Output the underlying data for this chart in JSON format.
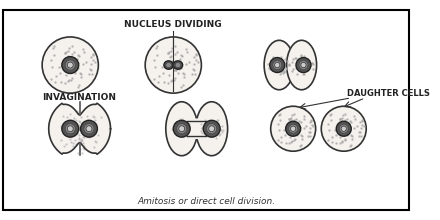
{
  "title": "Amitosis or direct cell division.",
  "label_nucleus_dividing": "NUCLEUS DIVIDING",
  "label_invagination": "INVAGINATION",
  "label_daughter_cells": "DAUGHTER CELLS",
  "bg_color": "#ffffff",
  "border_color": "#000000",
  "cell_fill": "#f0ede8",
  "nucleus_fill": "#2a2a2a",
  "nucleolus_fill": "#ffffff",
  "cytoplasm_spot_color": "#cccccc",
  "line_color": "#000000",
  "fig_width": 4.4,
  "fig_height": 2.2,
  "dpi": 100
}
